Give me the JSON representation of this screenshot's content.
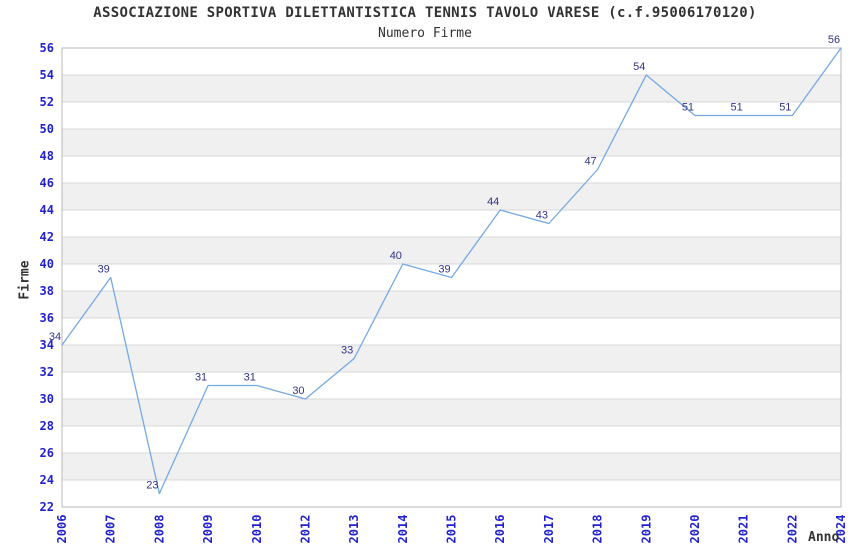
{
  "chart_data": {
    "type": "line",
    "title": "ASSOCIAZIONE SPORTIVA DILETTANTISTICA TENNIS TAVOLO VARESE (c.f.95006170120)",
    "subtitle": "Numero Firme",
    "xlabel": "Anno",
    "ylabel": "Firme",
    "categories": [
      "2006",
      "2007",
      "2008",
      "2009",
      "2010",
      "2012",
      "2013",
      "2014",
      "2015",
      "2016",
      "2017",
      "2018",
      "2019",
      "2020",
      "2021",
      "2022",
      "2024"
    ],
    "values": [
      34,
      39,
      23,
      31,
      31,
      30,
      33,
      40,
      39,
      44,
      43,
      47,
      54,
      51,
      51,
      51,
      56
    ],
    "point_labels_shown": true,
    "ylim": [
      22,
      56
    ],
    "ytick_step": 2,
    "yticks": [
      22,
      24,
      26,
      28,
      30,
      32,
      34,
      36,
      38,
      40,
      42,
      44,
      46,
      48,
      50,
      52,
      54,
      56
    ],
    "grid": "horizontal gridlines every 2 units with alternating shaded bands",
    "legend": "none",
    "markers": "none",
    "colors": {
      "line": "#74a9e4",
      "axis_tick_labels": "#2222cc",
      "point_value_labels": "#333388",
      "title_text": "#333333",
      "band_shade": "#f0f0f0",
      "gridline": "#d8d8d8",
      "plot_border": "#b8b8b8",
      "background": "#ffffff"
    }
  }
}
